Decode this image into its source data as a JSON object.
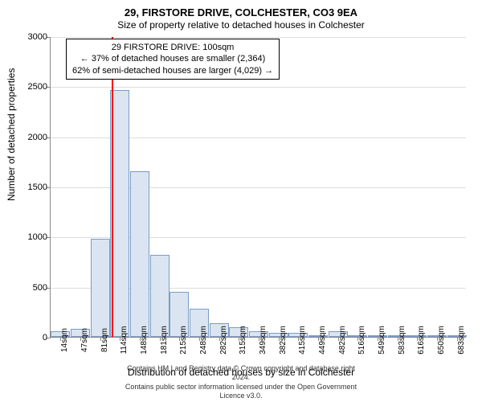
{
  "header": {
    "title": "29, FIRSTORE DRIVE, COLCHESTER, CO3 9EA",
    "subtitle": "Size of property relative to detached houses in Colchester"
  },
  "chart": {
    "type": "histogram",
    "bar_fill": "#dbe5f1",
    "bar_stroke": "#7a9cc6",
    "grid_color": "#dddddd",
    "axis_color": "#888888",
    "marker_color": "#ff0000",
    "ylabel": "Number of detached properties",
    "xlabel": "Distribution of detached houses by size in Colchester",
    "ylim": [
      0,
      3000
    ],
    "ytick_step": 500,
    "yticks": [
      0,
      500,
      1000,
      1500,
      2000,
      2500,
      3000
    ],
    "xticks": [
      "14sqm",
      "47sqm",
      "81sqm",
      "114sqm",
      "148sqm",
      "181sqm",
      "215sqm",
      "248sqm",
      "282sqm",
      "315sqm",
      "349sqm",
      "382sqm",
      "415sqm",
      "449sqm",
      "482sqm",
      "516sqm",
      "549sqm",
      "583sqm",
      "616sqm",
      "650sqm",
      "683sqm"
    ],
    "values": [
      60,
      80,
      980,
      2460,
      1650,
      820,
      450,
      280,
      140,
      100,
      60,
      40,
      40,
      20,
      60,
      10,
      10,
      8,
      5,
      5,
      5
    ],
    "marker_index": 2.6,
    "bar_rel_width": 0.98
  },
  "annotation": {
    "line1": "29 FIRSTORE DRIVE: 100sqm",
    "line2": "← 37% of detached houses are smaller (2,364)",
    "line3": "62% of semi-detached houses are larger (4,029) →"
  },
  "footer": {
    "line1": "Contains HM Land Registry data © Crown copyright and database right 2024.",
    "line2": "Contains public sector information licensed under the Open Government Licence v3.0."
  }
}
